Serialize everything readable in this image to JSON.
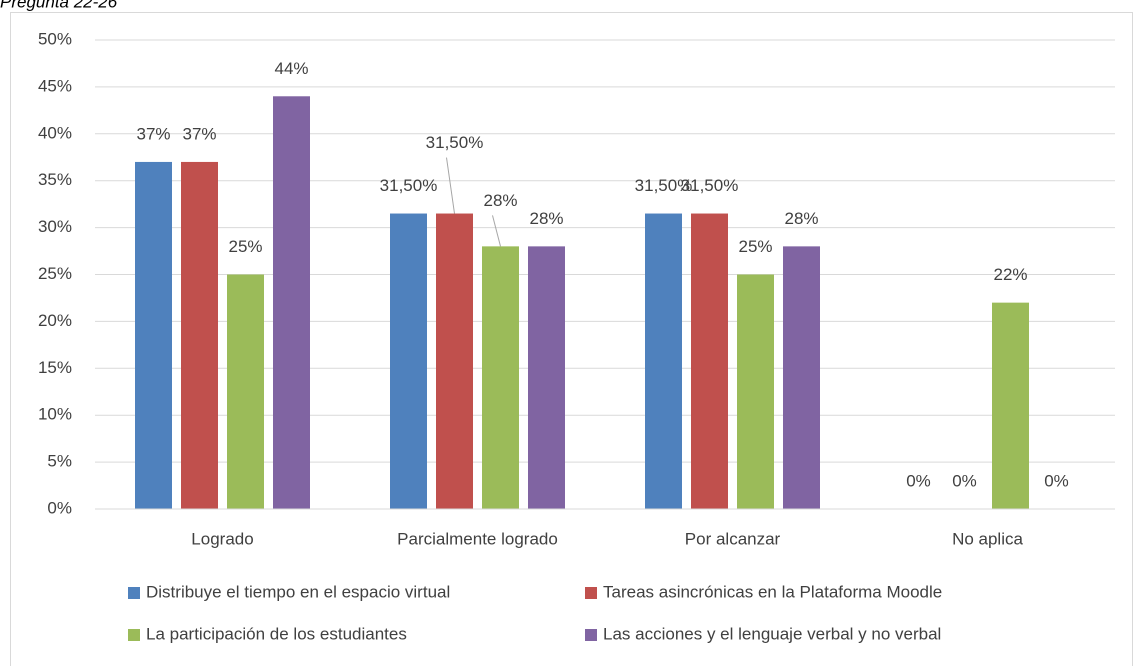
{
  "chart_data": {
    "type": "bar",
    "title": "Pregunta 22-26",
    "categories": [
      "Logrado",
      "Parcialmente logrado",
      "Por alcanzar",
      "No aplica"
    ],
    "series": [
      {
        "name": "Distribuye el tiempo en el espacio virtual",
        "color": "#4f81bd",
        "values": [
          37,
          31.5,
          31.5,
          0
        ],
        "value_labels": [
          "37%",
          "31,50%",
          "31,50%",
          "0%"
        ]
      },
      {
        "name": "Tareas asincrónicas en la Plataforma Moodle",
        "color": "#c0504d",
        "values": [
          37,
          31.5,
          31.5,
          0
        ],
        "value_labels": [
          "37%",
          "31,50%",
          "31,50%",
          "0%"
        ]
      },
      {
        "name": "La participación de los estudiantes",
        "color": "#9bbb59",
        "values": [
          25,
          28,
          25,
          22
        ],
        "value_labels": [
          "25%",
          "28%",
          "25%",
          "22%"
        ]
      },
      {
        "name": "Las acciones y el lenguaje verbal y no verbal",
        "color": "#8064a2",
        "values": [
          44,
          28,
          28,
          0
        ],
        "value_labels": [
          "44%",
          "28%",
          "28%",
          "0%"
        ]
      }
    ],
    "ylim": [
      0,
      50
    ],
    "yticks": [
      {
        "value": 0,
        "label": "0%"
      },
      {
        "value": 5,
        "label": "5%"
      },
      {
        "value": 10,
        "label": "10%"
      },
      {
        "value": 15,
        "label": "15%"
      },
      {
        "value": 20,
        "label": "20%"
      },
      {
        "value": 25,
        "label": "25%"
      },
      {
        "value": 30,
        "label": "30%"
      },
      {
        "value": 35,
        "label": "35%"
      },
      {
        "value": 40,
        "label": "40%"
      },
      {
        "value": 45,
        "label": "45%"
      },
      {
        "value": 50,
        "label": "50%"
      }
    ],
    "grid": true,
    "legend": "bottom"
  }
}
